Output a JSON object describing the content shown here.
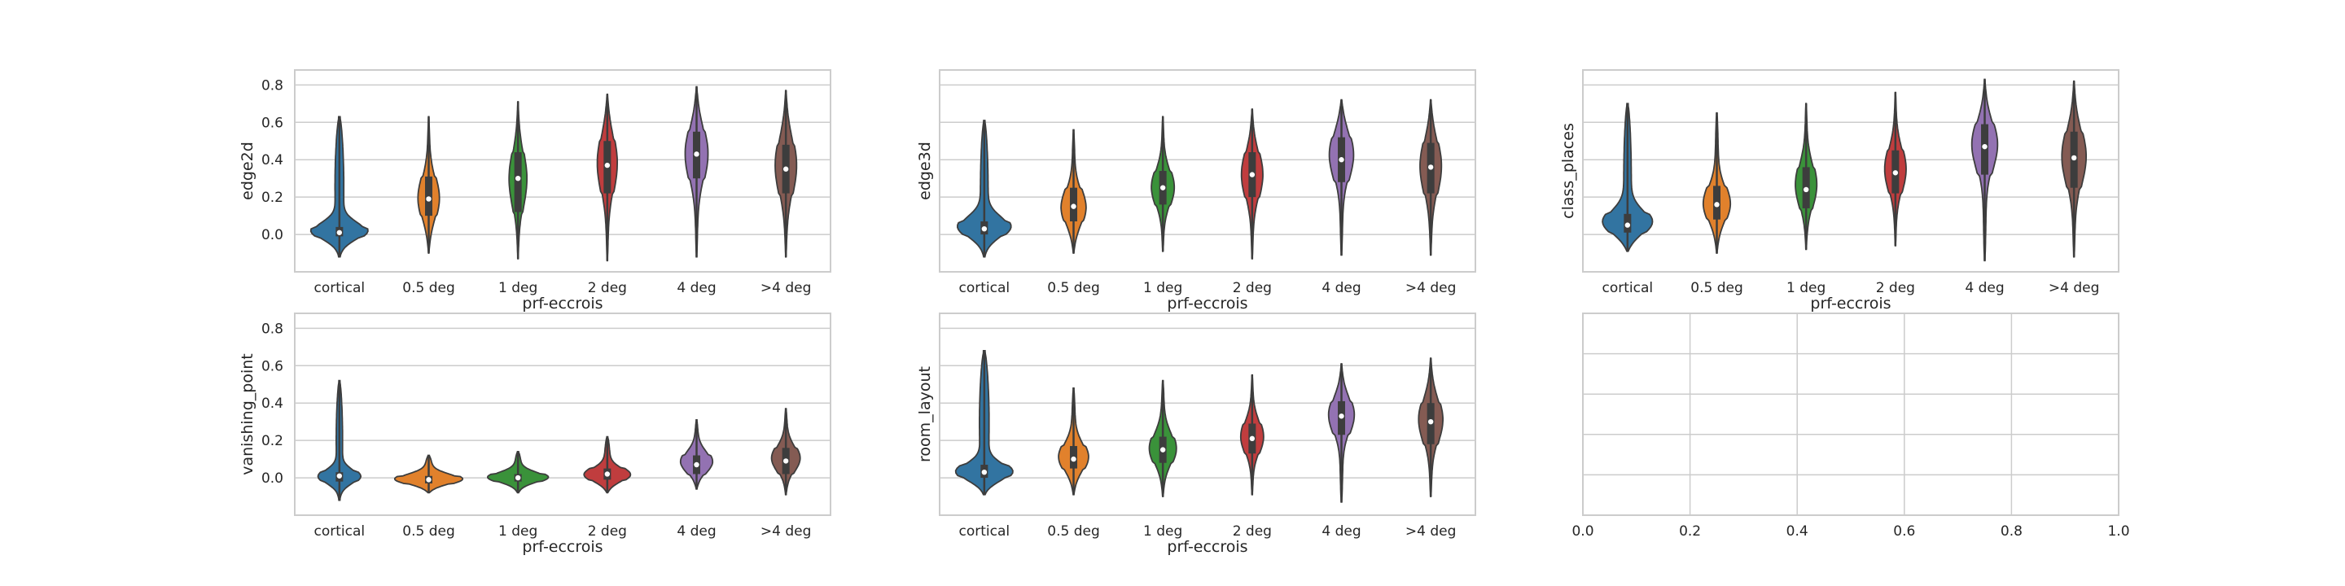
{
  "figure": {
    "layout": "2 rows x 3 columns of axes; last axis empty",
    "style": "whitegrid",
    "palette": [
      "#3274a1",
      "#e1812c",
      "#3a923a",
      "#c03d3e",
      "#9372b2",
      "#845b53"
    ]
  },
  "chart_data": [
    {
      "type": "violin",
      "xlabel": "prf-eccrois",
      "ylabel": "edge2d",
      "categories": [
        "cortical",
        "0.5 deg",
        "1 deg",
        "2 deg",
        "4 deg",
        ">4 deg"
      ],
      "ylim": [
        -0.2,
        0.88
      ],
      "yticks": [
        0.0,
        0.2,
        0.4,
        0.6,
        0.8
      ],
      "ytick_labels": [
        "0.0",
        "0.2",
        "0.4",
        "0.6",
        "0.8"
      ],
      "show_yticklabels": true,
      "show_xticklabels": true,
      "series": [
        {
          "name": "cortical",
          "min": -0.12,
          "q1": -0.01,
          "median": 0.01,
          "q3": 0.04,
          "max": 0.63,
          "mode": 0.01,
          "width": 0.8,
          "spread": 0.05
        },
        {
          "name": "0.5 deg",
          "min": -0.1,
          "q1": 0.1,
          "median": 0.19,
          "q3": 0.31,
          "max": 0.63,
          "mode": 0.18,
          "width": 0.3,
          "spread": 0.12
        },
        {
          "name": "1 deg",
          "min": -0.13,
          "q1": 0.12,
          "median": 0.3,
          "q3": 0.44,
          "max": 0.71,
          "mode": 0.3,
          "width": 0.25,
          "spread": 0.15
        },
        {
          "name": "2 deg",
          "min": -0.14,
          "q1": 0.22,
          "median": 0.37,
          "q3": 0.5,
          "max": 0.75,
          "mode": 0.4,
          "width": 0.28,
          "spread": 0.16
        },
        {
          "name": "4 deg",
          "min": -0.12,
          "q1": 0.3,
          "median": 0.43,
          "q3": 0.55,
          "max": 0.79,
          "mode": 0.45,
          "width": 0.32,
          "spread": 0.15
        },
        {
          "name": ">4 deg",
          "min": -0.12,
          "q1": 0.22,
          "median": 0.35,
          "q3": 0.48,
          "max": 0.77,
          "mode": 0.38,
          "width": 0.3,
          "spread": 0.16
        }
      ]
    },
    {
      "type": "violin",
      "xlabel": "prf-eccrois",
      "ylabel": "edge3d",
      "categories": [
        "cortical",
        "0.5 deg",
        "1 deg",
        "2 deg",
        "4 deg",
        ">4 deg"
      ],
      "ylim": [
        -0.2,
        0.88
      ],
      "yticks": [
        0.0,
        0.2,
        0.4,
        0.6,
        0.8
      ],
      "ytick_labels": [],
      "show_yticklabels": false,
      "show_xticklabels": true,
      "series": [
        {
          "name": "cortical",
          "min": -0.12,
          "q1": 0.0,
          "median": 0.03,
          "q3": 0.07,
          "max": 0.61,
          "mode": 0.03,
          "width": 0.75,
          "spread": 0.06
        },
        {
          "name": "0.5 deg",
          "min": -0.1,
          "q1": 0.07,
          "median": 0.15,
          "q3": 0.25,
          "max": 0.56,
          "mode": 0.13,
          "width": 0.35,
          "spread": 0.1
        },
        {
          "name": "1 deg",
          "min": -0.09,
          "q1": 0.16,
          "median": 0.25,
          "q3": 0.34,
          "max": 0.63,
          "mode": 0.25,
          "width": 0.32,
          "spread": 0.1
        },
        {
          "name": "2 deg",
          "min": -0.13,
          "q1": 0.2,
          "median": 0.32,
          "q3": 0.44,
          "max": 0.67,
          "mode": 0.33,
          "width": 0.3,
          "spread": 0.13
        },
        {
          "name": "4 deg",
          "min": -0.11,
          "q1": 0.28,
          "median": 0.4,
          "q3": 0.52,
          "max": 0.72,
          "mode": 0.45,
          "width": 0.34,
          "spread": 0.13
        },
        {
          "name": ">4 deg",
          "min": -0.11,
          "q1": 0.22,
          "median": 0.36,
          "q3": 0.49,
          "max": 0.72,
          "mode": 0.38,
          "width": 0.3,
          "spread": 0.15
        }
      ]
    },
    {
      "type": "violin",
      "xlabel": "prf-eccrois",
      "ylabel": "class_places",
      "categories": [
        "cortical",
        "0.5 deg",
        "1 deg",
        "2 deg",
        "4 deg",
        ">4 deg"
      ],
      "ylim": [
        -0.2,
        0.88
      ],
      "yticks": [
        0.0,
        0.2,
        0.4,
        0.6,
        0.8
      ],
      "ytick_labels": [],
      "show_yticklabels": false,
      "show_xticklabels": true,
      "series": [
        {
          "name": "cortical",
          "min": -0.09,
          "q1": 0.01,
          "median": 0.05,
          "q3": 0.11,
          "max": 0.7,
          "mode": 0.05,
          "width": 0.7,
          "spread": 0.07
        },
        {
          "name": "0.5 deg",
          "min": -0.1,
          "q1": 0.08,
          "median": 0.16,
          "q3": 0.26,
          "max": 0.65,
          "mode": 0.15,
          "width": 0.38,
          "spread": 0.1
        },
        {
          "name": "1 deg",
          "min": -0.08,
          "q1": 0.14,
          "median": 0.24,
          "q3": 0.36,
          "max": 0.7,
          "mode": 0.26,
          "width": 0.3,
          "spread": 0.12
        },
        {
          "name": "2 deg",
          "min": -0.06,
          "q1": 0.22,
          "median": 0.33,
          "q3": 0.45,
          "max": 0.76,
          "mode": 0.35,
          "width": 0.3,
          "spread": 0.12
        },
        {
          "name": "4 deg",
          "min": -0.14,
          "q1": 0.32,
          "median": 0.47,
          "q3": 0.59,
          "max": 0.83,
          "mode": 0.5,
          "width": 0.36,
          "spread": 0.13
        },
        {
          "name": ">4 deg",
          "min": -0.12,
          "q1": 0.25,
          "median": 0.41,
          "q3": 0.55,
          "max": 0.82,
          "mode": 0.43,
          "width": 0.34,
          "spread": 0.15
        }
      ]
    },
    {
      "type": "violin",
      "xlabel": "prf-eccrois",
      "ylabel": "vanishing_point",
      "categories": [
        "cortical",
        "0.5 deg",
        "1 deg",
        "2 deg",
        "4 deg",
        ">4 deg"
      ],
      "ylim": [
        -0.2,
        0.88
      ],
      "yticks": [
        0.0,
        0.2,
        0.4,
        0.6,
        0.8
      ],
      "ytick_labels": [
        "0.0",
        "0.2",
        "0.4",
        "0.6",
        "0.8"
      ],
      "show_yticklabels": true,
      "show_xticklabels": true,
      "series": [
        {
          "name": "cortical",
          "min": -0.12,
          "q1": -0.02,
          "median": 0.01,
          "q3": 0.03,
          "max": 0.52,
          "mode": 0.0,
          "width": 0.6,
          "spread": 0.04
        },
        {
          "name": "0.5 deg",
          "min": -0.08,
          "q1": -0.03,
          "median": -0.01,
          "q3": 0.01,
          "max": 0.12,
          "mode": -0.01,
          "width": 0.95,
          "spread": 0.03
        },
        {
          "name": "1 deg",
          "min": -0.08,
          "q1": -0.02,
          "median": 0.0,
          "q3": 0.02,
          "max": 0.14,
          "mode": 0.0,
          "width": 0.85,
          "spread": 0.03
        },
        {
          "name": "2 deg",
          "min": -0.08,
          "q1": -0.01,
          "median": 0.02,
          "q3": 0.05,
          "max": 0.22,
          "mode": 0.01,
          "width": 0.65,
          "spread": 0.04
        },
        {
          "name": "4 deg",
          "min": -0.06,
          "q1": 0.02,
          "median": 0.07,
          "q3": 0.12,
          "max": 0.31,
          "mode": 0.08,
          "width": 0.45,
          "spread": 0.06
        },
        {
          "name": ">4 deg",
          "min": -0.09,
          "q1": 0.02,
          "median": 0.09,
          "q3": 0.16,
          "max": 0.37,
          "mode": 0.1,
          "width": 0.4,
          "spread": 0.07
        }
      ]
    },
    {
      "type": "violin",
      "xlabel": "prf-eccrois",
      "ylabel": "room_layout",
      "categories": [
        "cortical",
        "0.5 deg",
        "1 deg",
        "2 deg",
        "4 deg",
        ">4 deg"
      ],
      "ylim": [
        -0.2,
        0.88
      ],
      "yticks": [
        0.0,
        0.2,
        0.4,
        0.6,
        0.8
      ],
      "ytick_labels": [],
      "show_yticklabels": false,
      "show_xticklabels": true,
      "series": [
        {
          "name": "cortical",
          "min": -0.09,
          "q1": 0.0,
          "median": 0.03,
          "q3": 0.07,
          "max": 0.68,
          "mode": 0.02,
          "width": 0.8,
          "spread": 0.05
        },
        {
          "name": "0.5 deg",
          "min": -0.09,
          "q1": 0.05,
          "median": 0.1,
          "q3": 0.17,
          "max": 0.48,
          "mode": 0.1,
          "width": 0.42,
          "spread": 0.08
        },
        {
          "name": "1 deg",
          "min": -0.1,
          "q1": 0.08,
          "median": 0.15,
          "q3": 0.22,
          "max": 0.52,
          "mode": 0.15,
          "width": 0.38,
          "spread": 0.09
        },
        {
          "name": "2 deg",
          "min": -0.09,
          "q1": 0.13,
          "median": 0.21,
          "q3": 0.29,
          "max": 0.55,
          "mode": 0.22,
          "width": 0.32,
          "spread": 0.09
        },
        {
          "name": "4 deg",
          "min": -0.13,
          "q1": 0.23,
          "median": 0.33,
          "q3": 0.41,
          "max": 0.61,
          "mode": 0.35,
          "width": 0.36,
          "spread": 0.1
        },
        {
          "name": ">4 deg",
          "min": -0.1,
          "q1": 0.18,
          "median": 0.3,
          "q3": 0.4,
          "max": 0.64,
          "mode": 0.32,
          "width": 0.34,
          "spread": 0.12
        }
      ]
    },
    {
      "type": "empty",
      "xlabel": "",
      "ylabel": "",
      "categories": [],
      "xlim": [
        0.0,
        1.0
      ],
      "xticks": [
        0.0,
        0.2,
        0.4,
        0.6,
        0.8,
        1.0
      ],
      "xtick_labels": [
        "0.0",
        "0.2",
        "0.4",
        "0.6",
        "0.8",
        "1.0"
      ],
      "ylim": [
        0.0,
        1.0
      ],
      "yticks": [
        0.0,
        0.2,
        0.4,
        0.6,
        0.8,
        1.0
      ],
      "show_yticklabels": false,
      "series": []
    }
  ]
}
